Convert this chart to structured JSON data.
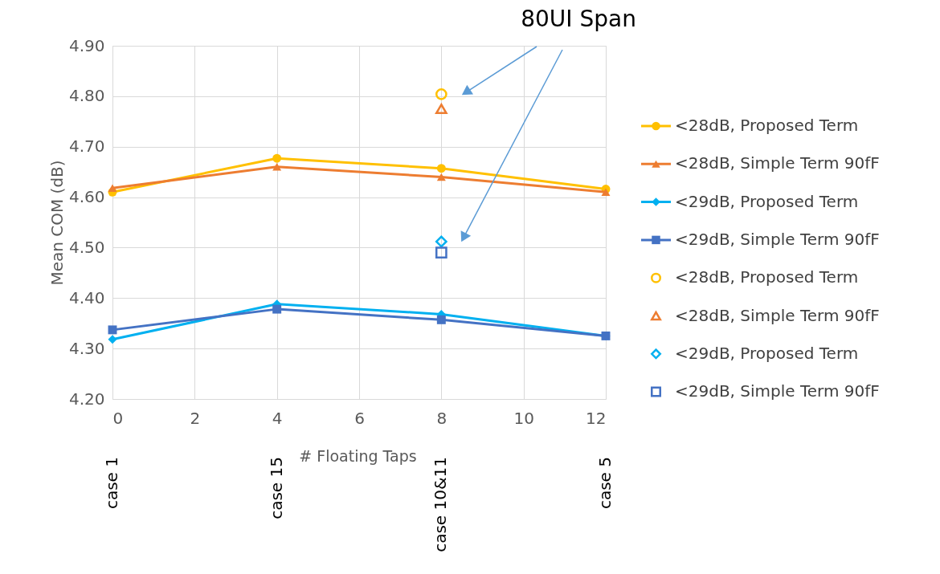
{
  "chart_data": {
    "type": "line",
    "xlabel": "# Floating Taps",
    "ylabel": "Mean COM (dB)",
    "x": [
      0,
      4,
      8,
      12
    ],
    "xlim": [
      0,
      12
    ],
    "xticks": [
      0,
      2,
      4,
      6,
      8,
      10,
      12
    ],
    "ylim": [
      4.2,
      4.9
    ],
    "yticks": [
      {
        "value": 4.2,
        "label": "4.20"
      },
      {
        "value": 4.3,
        "label": "4.30"
      },
      {
        "value": 4.4,
        "label": "4.40"
      },
      {
        "value": 4.5,
        "label": "4.50"
      },
      {
        "value": 4.6,
        "label": "4.60"
      },
      {
        "value": 4.7,
        "label": "4.70"
      },
      {
        "value": 4.8,
        "label": "4.80"
      },
      {
        "value": 4.9,
        "label": "4.90"
      }
    ],
    "grid": true,
    "legend": "right",
    "series": [
      {
        "name": "<28dB, Proposed Term",
        "color": "#ffc000",
        "marker": "circle",
        "values": [
          4.61,
          4.677,
          4.657,
          4.616
        ]
      },
      {
        "name": "<28dB, Simple Term 90fF",
        "color": "#ed7d31",
        "marker": "triangle",
        "values": [
          4.618,
          4.66,
          4.64,
          4.61
        ]
      },
      {
        "name": "<29dB, Proposed Term",
        "color": "#00b0f0",
        "marker": "diamond",
        "values": [
          4.318,
          4.388,
          4.368,
          4.325
        ]
      },
      {
        "name": "<29dB, Simple Term 90fF",
        "color": "#4472c4",
        "marker": "square",
        "values": [
          4.337,
          4.378,
          4.357,
          4.325
        ]
      },
      {
        "name": "<28dB, Proposed Term",
        "color": "#ffc000",
        "marker": "circle",
        "type": "scatter",
        "values": [
          null,
          null,
          4.804,
          null
        ]
      },
      {
        "name": "<28dB, Simple Term 90fF",
        "color": "#ed7d31",
        "marker": "triangle",
        "type": "scatter",
        "values": [
          null,
          null,
          4.775,
          null
        ]
      },
      {
        "name": "<29dB, Proposed Term",
        "color": "#00b0f0",
        "marker": "diamond",
        "type": "scatter",
        "values": [
          null,
          null,
          4.512,
          null
        ]
      },
      {
        "name": "<29dB, Simple Term 90fF",
        "color": "#4472c4",
        "marker": "square",
        "type": "scatter",
        "values": [
          null,
          null,
          4.49,
          null
        ]
      }
    ],
    "annotations": [
      "80UI Span",
      "case 1",
      "case 15",
      "case 10&11",
      "case 5"
    ]
  }
}
